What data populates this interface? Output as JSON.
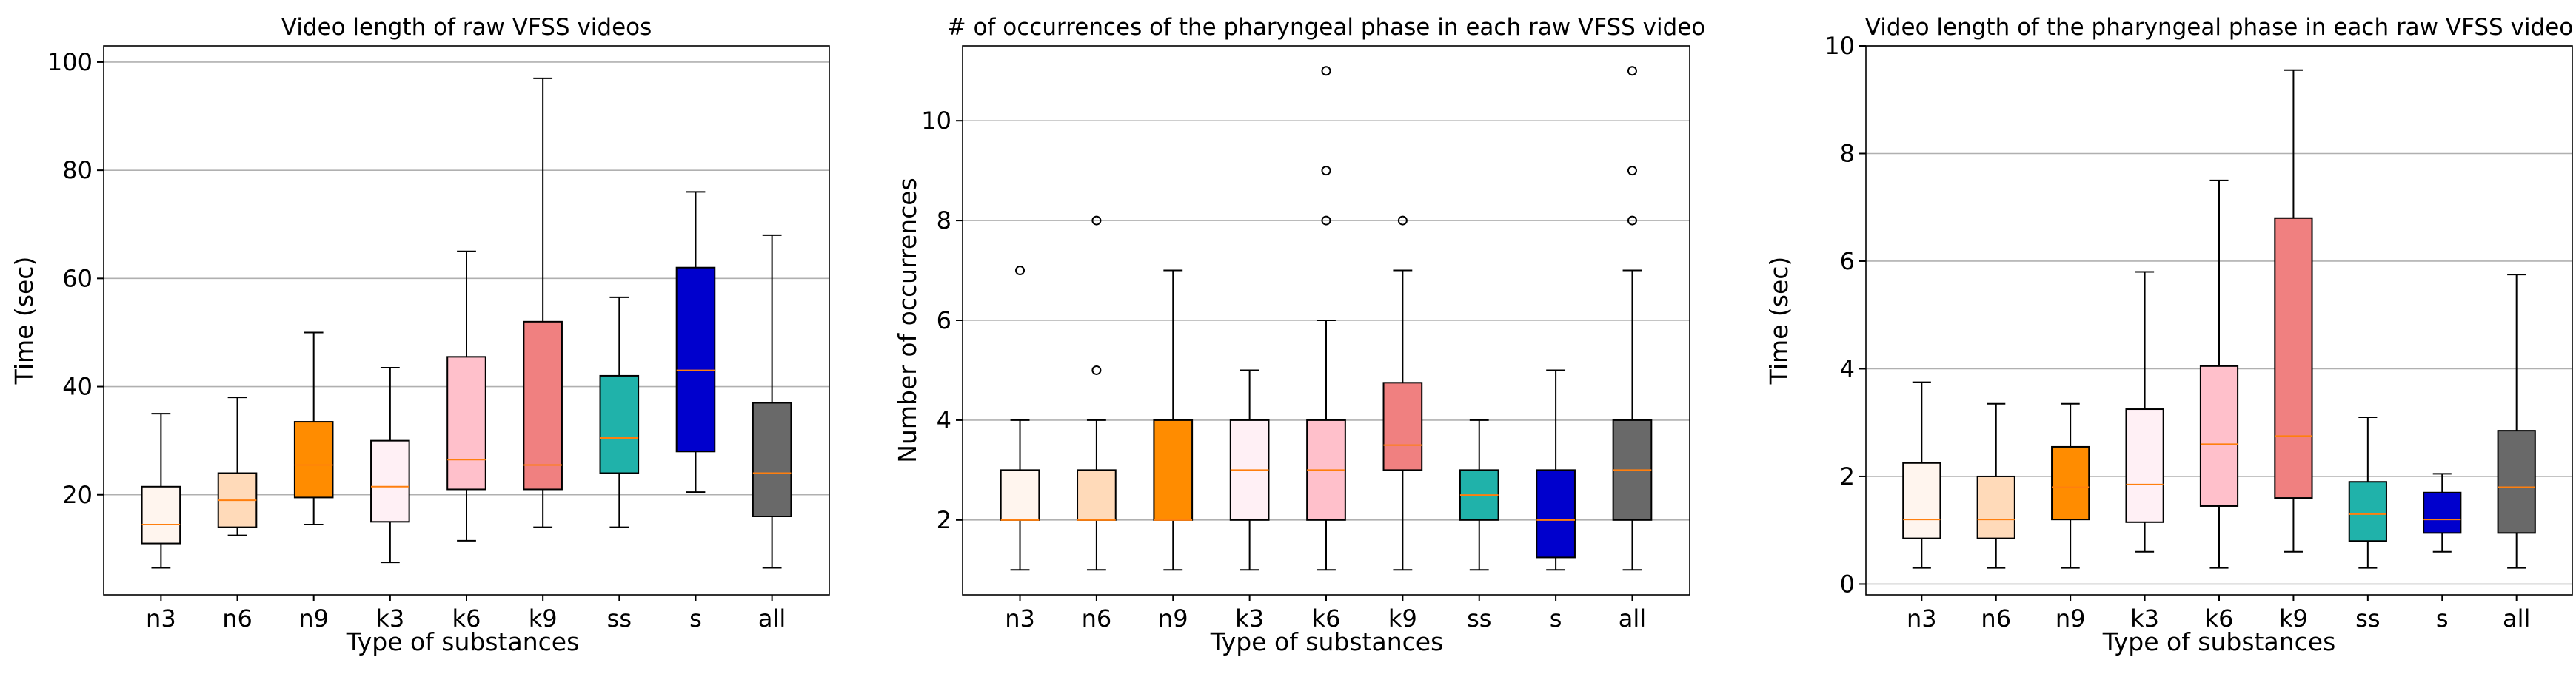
{
  "chart_data": [
    {
      "type": "box",
      "title": "Video length of raw VFSS videos",
      "xlabel": "Type of substances",
      "ylabel": "Time (sec)",
      "ylim": [
        1.5,
        103
      ],
      "yticks": [
        20,
        40,
        60,
        80,
        100
      ],
      "grid": "y",
      "categories": [
        "n3",
        "n6",
        "n9",
        "k3",
        "k6",
        "k9",
        "ss",
        "s",
        "all"
      ],
      "colors": [
        "#fff5ee",
        "#ffdab9",
        "#ff8c00",
        "#fff0f5",
        "#ffc0cb",
        "#f08080",
        "#20b2aa",
        "#0000cd",
        "#696969"
      ],
      "boxes": [
        {
          "whislo": 6.5,
          "q1": 11,
          "med": 14.5,
          "q3": 21.5,
          "whishi": 35,
          "fliers": []
        },
        {
          "whislo": 12.5,
          "q1": 14,
          "med": 19,
          "q3": 24,
          "whishi": 38,
          "fliers": []
        },
        {
          "whislo": 14.5,
          "q1": 19.5,
          "med": 25.5,
          "q3": 33.5,
          "whishi": 50,
          "fliers": []
        },
        {
          "whislo": 7.5,
          "q1": 15,
          "med": 21.5,
          "q3": 30,
          "whishi": 43.5,
          "fliers": []
        },
        {
          "whislo": 11.5,
          "q1": 21,
          "med": 26.5,
          "q3": 45.5,
          "whishi": 65,
          "fliers": []
        },
        {
          "whislo": 14,
          "q1": 21,
          "med": 25.5,
          "q3": 52,
          "whishi": 97,
          "fliers": []
        },
        {
          "whislo": 14,
          "q1": 24,
          "med": 30.5,
          "q3": 42,
          "whishi": 56.5,
          "fliers": []
        },
        {
          "whislo": 20.5,
          "q1": 28,
          "med": 43,
          "q3": 62,
          "whishi": 76,
          "fliers": []
        },
        {
          "whislo": 6.5,
          "q1": 16,
          "med": 24,
          "q3": 37,
          "whishi": 68,
          "fliers": []
        }
      ]
    },
    {
      "type": "box",
      "title": "# of occurrences of the pharyngeal phase in each raw VFSS video",
      "xlabel": "Type of substances",
      "ylabel": "Number of occurrences",
      "ylim": [
        0.5,
        11.5
      ],
      "yticks": [
        2,
        4,
        6,
        8,
        10
      ],
      "grid": "y",
      "categories": [
        "n3",
        "n6",
        "n9",
        "k3",
        "k6",
        "k9",
        "ss",
        "s",
        "all"
      ],
      "colors": [
        "#fff5ee",
        "#ffdab9",
        "#ff8c00",
        "#fff0f5",
        "#ffc0cb",
        "#f08080",
        "#20b2aa",
        "#0000cd",
        "#696969"
      ],
      "boxes": [
        {
          "whislo": 1,
          "q1": 2,
          "med": 2,
          "q3": 3,
          "whishi": 4,
          "fliers": [
            7
          ]
        },
        {
          "whislo": 1,
          "q1": 2,
          "med": 2,
          "q3": 3,
          "whishi": 4,
          "fliers": [
            5,
            8
          ]
        },
        {
          "whislo": 1,
          "q1": 2,
          "med": 2,
          "q3": 4,
          "whishi": 7,
          "fliers": []
        },
        {
          "whislo": 1,
          "q1": 2,
          "med": 3,
          "q3": 4,
          "whishi": 5,
          "fliers": []
        },
        {
          "whislo": 1,
          "q1": 2,
          "med": 3,
          "q3": 4,
          "whishi": 6,
          "fliers": [
            8,
            9,
            11
          ]
        },
        {
          "whislo": 1,
          "q1": 3,
          "med": 3.5,
          "q3": 4.75,
          "whishi": 7,
          "fliers": [
            8
          ]
        },
        {
          "whislo": 1,
          "q1": 2,
          "med": 2.5,
          "q3": 3,
          "whishi": 4,
          "fliers": []
        },
        {
          "whislo": 1,
          "q1": 1.25,
          "med": 2,
          "q3": 3,
          "whishi": 5,
          "fliers": []
        },
        {
          "whislo": 1,
          "q1": 2,
          "med": 3,
          "q3": 4,
          "whishi": 7,
          "fliers": [
            8,
            9,
            11
          ]
        }
      ]
    },
    {
      "type": "box",
      "title": "Video length of the pharyngeal phase in each raw VFSS video",
      "xlabel": "Type of substances",
      "ylabel": "Time (sec)",
      "ylim": [
        -0.2,
        10
      ],
      "yticks": [
        0,
        2,
        4,
        6,
        8,
        10
      ],
      "grid": "y",
      "categories": [
        "n3",
        "n6",
        "n9",
        "k3",
        "k6",
        "k9",
        "ss",
        "s",
        "all"
      ],
      "colors": [
        "#fff5ee",
        "#ffdab9",
        "#ff8c00",
        "#fff0f5",
        "#ffc0cb",
        "#f08080",
        "#20b2aa",
        "#0000cd",
        "#696969"
      ],
      "boxes": [
        {
          "whislo": 0.3,
          "q1": 0.85,
          "med": 1.2,
          "q3": 2.25,
          "whishi": 3.75,
          "fliers": []
        },
        {
          "whislo": 0.3,
          "q1": 0.85,
          "med": 1.2,
          "q3": 2,
          "whishi": 3.35,
          "fliers": []
        },
        {
          "whislo": 0.3,
          "q1": 1.2,
          "med": 1.8,
          "q3": 2.55,
          "whishi": 3.35,
          "fliers": []
        },
        {
          "whislo": 0.6,
          "q1": 1.15,
          "med": 1.85,
          "q3": 3.25,
          "whishi": 5.8,
          "fliers": []
        },
        {
          "whislo": 0.3,
          "q1": 1.45,
          "med": 2.6,
          "q3": 4.05,
          "whishi": 7.5,
          "fliers": []
        },
        {
          "whislo": 0.6,
          "q1": 1.6,
          "med": 2.75,
          "q3": 6.8,
          "whishi": 9.55,
          "fliers": []
        },
        {
          "whislo": 0.3,
          "q1": 0.8,
          "med": 1.3,
          "q3": 1.9,
          "whishi": 3.1,
          "fliers": []
        },
        {
          "whislo": 0.6,
          "q1": 0.95,
          "med": 1.2,
          "q3": 1.7,
          "whishi": 2.05,
          "fliers": []
        },
        {
          "whislo": 0.3,
          "q1": 0.95,
          "med": 1.8,
          "q3": 2.85,
          "whishi": 5.75,
          "fliers": []
        }
      ]
    }
  ]
}
